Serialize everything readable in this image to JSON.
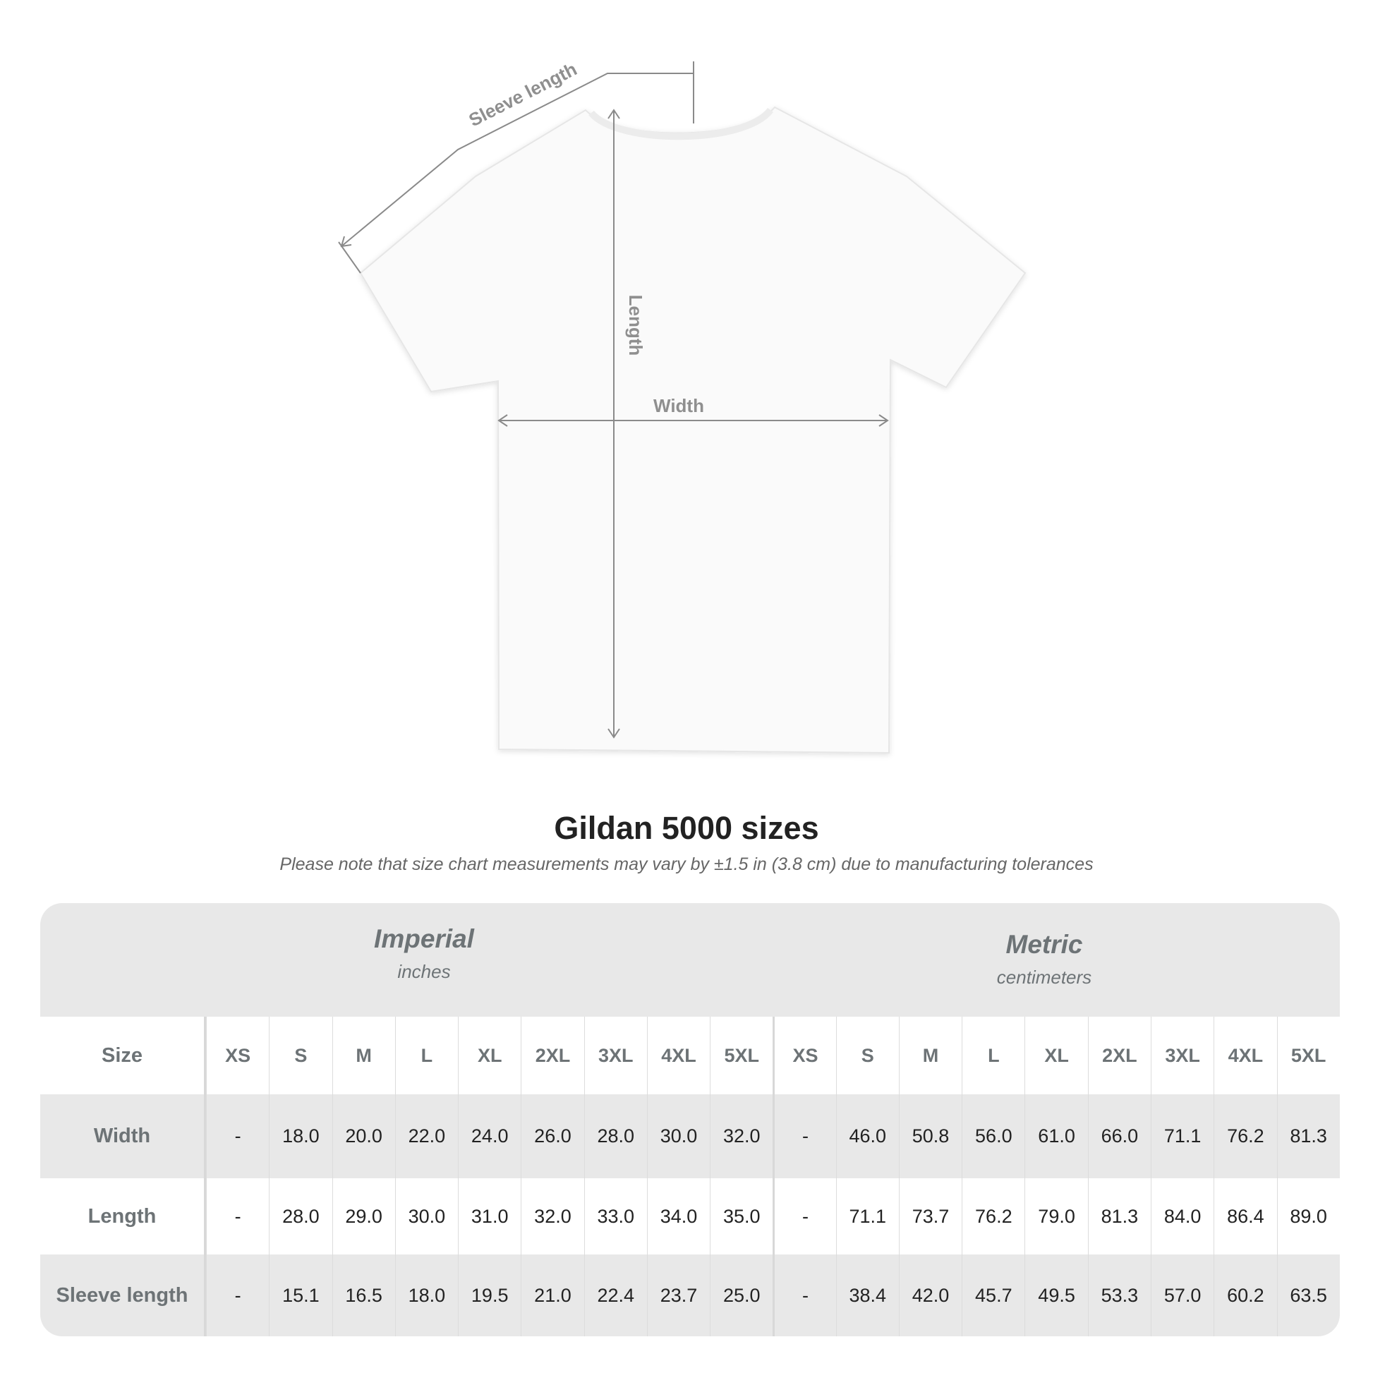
{
  "diagram": {
    "labels": {
      "sleeve": "Sleeve length",
      "length": "Length",
      "width": "Width"
    },
    "line_color": "#8a8a8a"
  },
  "title": "Gildan 5000 sizes",
  "note": "Please note that size chart measurements may vary by ±1.5 in (3.8 cm) due to manufacturing tolerances",
  "table": {
    "imperial": {
      "name": "Imperial",
      "unit": "inches"
    },
    "metric": {
      "name": "Metric",
      "unit": "centimeters"
    },
    "size_label": "Size",
    "sizes": [
      "XS",
      "S",
      "M",
      "L",
      "XL",
      "2XL",
      "3XL",
      "4XL",
      "5XL"
    ],
    "rows": [
      {
        "label": "Width",
        "imperial": [
          "-",
          "18.0",
          "20.0",
          "22.0",
          "24.0",
          "26.0",
          "28.0",
          "30.0",
          "32.0"
        ],
        "metric": [
          "-",
          "46.0",
          "50.8",
          "56.0",
          "61.0",
          "66.0",
          "71.1",
          "76.2",
          "81.3"
        ]
      },
      {
        "label": "Length",
        "imperial": [
          "-",
          "28.0",
          "29.0",
          "30.0",
          "31.0",
          "32.0",
          "33.0",
          "34.0",
          "35.0"
        ],
        "metric": [
          "-",
          "71.1",
          "73.7",
          "76.2",
          "79.0",
          "81.3",
          "84.0",
          "86.4",
          "89.0"
        ]
      },
      {
        "label": "Sleeve length",
        "imperial": [
          "-",
          "15.1",
          "16.5",
          "18.0",
          "19.5",
          "21.0",
          "22.4",
          "23.7",
          "25.0"
        ],
        "metric": [
          "-",
          "38.4",
          "42.0",
          "45.7",
          "49.5",
          "53.3",
          "57.0",
          "60.2",
          "63.5"
        ]
      }
    ]
  }
}
